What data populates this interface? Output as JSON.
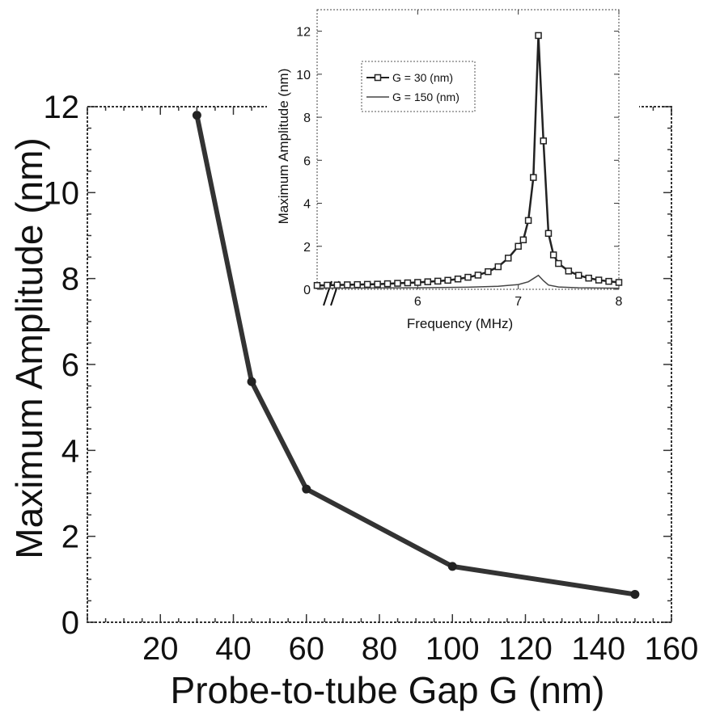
{
  "chart_data": [
    {
      "type": "line",
      "title": "",
      "xlabel": "Probe-to-tube Gap G (nm)",
      "ylabel": "Maximum Amplitude (nm)",
      "xlim": [
        0,
        160
      ],
      "ylim": [
        0,
        12
      ],
      "xticks": [
        "20",
        "40",
        "60",
        "80",
        "100",
        "120",
        "140",
        "160"
      ],
      "yticks": [
        "0",
        "2",
        "4",
        "6",
        "8",
        "10",
        "12"
      ],
      "grid": false,
      "series": [
        {
          "x": [
            30,
            45,
            60,
            100,
            150
          ],
          "y": [
            11.8,
            5.6,
            3.1,
            1.3,
            0.65
          ],
          "color": "#333333"
        }
      ]
    },
    {
      "type": "line",
      "title": "",
      "xlabel": "Frequency (MHz)",
      "ylabel": "Maximum Amplitude (nm)",
      "xlim": [
        5,
        8
      ],
      "ylim": [
        0,
        13
      ],
      "x_axis_break": true,
      "xticks": [
        "6",
        "7",
        "8"
      ],
      "yticks": [
        "0",
        "2",
        "4",
        "6",
        "8",
        "10",
        "12"
      ],
      "grid": false,
      "legend_position": "upper-left",
      "series": [
        {
          "name": "G = 30 (nm)",
          "marker": "square",
          "color": "#222222",
          "x": [
            5.0,
            5.1,
            5.2,
            5.3,
            5.4,
            5.5,
            5.6,
            5.7,
            5.8,
            5.9,
            6.0,
            6.1,
            6.2,
            6.3,
            6.4,
            6.5,
            6.6,
            6.7,
            6.8,
            6.9,
            7.0,
            7.05,
            7.1,
            7.15,
            7.2,
            7.25,
            7.3,
            7.35,
            7.4,
            7.5,
            7.6,
            7.7,
            7.8,
            7.9,
            8.0
          ],
          "y": [
            0.18,
            0.19,
            0.2,
            0.21,
            0.22,
            0.23,
            0.24,
            0.26,
            0.28,
            0.3,
            0.32,
            0.35,
            0.38,
            0.42,
            0.48,
            0.56,
            0.66,
            0.82,
            1.05,
            1.45,
            2.0,
            2.3,
            3.2,
            5.2,
            11.8,
            6.9,
            2.6,
            1.6,
            1.2,
            0.85,
            0.65,
            0.52,
            0.43,
            0.37,
            0.32
          ]
        },
        {
          "name": "G = 150 (nm)",
          "marker": "none",
          "color": "#444444",
          "x": [
            5.0,
            5.5,
            6.0,
            6.5,
            6.8,
            7.0,
            7.1,
            7.15,
            7.2,
            7.25,
            7.3,
            7.4,
            7.6,
            8.0
          ],
          "y": [
            0.05,
            0.06,
            0.07,
            0.1,
            0.14,
            0.22,
            0.35,
            0.5,
            0.65,
            0.4,
            0.2,
            0.11,
            0.07,
            0.05
          ]
        }
      ]
    }
  ]
}
